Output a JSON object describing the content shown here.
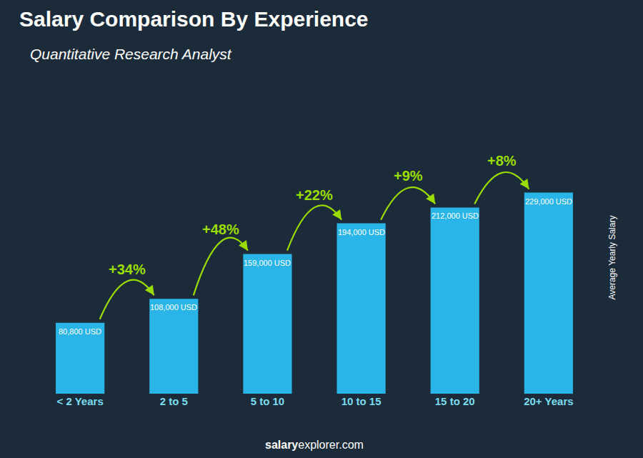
{
  "chart_data": {
    "type": "bar",
    "title": "Salary Comparison By Experience",
    "subtitle": "Quantitative Research Analyst",
    "ylabel": "Average Yearly Salary",
    "footer": [
      "salary",
      "explorer.com"
    ],
    "categories": [
      "< 2 Years",
      "2 to 5",
      "5 to 10",
      "10 to 15",
      "15 to 20",
      "20+ Years"
    ],
    "values": [
      80800,
      108000,
      159000,
      194000,
      212000,
      229000
    ],
    "value_labels": [
      "80,800 USD",
      "108,000 USD",
      "159,000 USD",
      "194,000 USD",
      "212,000 USD",
      "229,000 USD"
    ],
    "data_labels": true,
    "color": "#2ab5e8",
    "ylim": [
      0,
      310000
    ],
    "grid": false,
    "tick_labels": "x",
    "annotations": [
      {
        "text": "+34%",
        "from": "< 2 Years",
        "to": "2 to 5"
      },
      {
        "text": "+48%",
        "from": "2 to 5",
        "to": "5 to 10"
      },
      {
        "text": "+22%",
        "from": "5 to 10",
        "to": "10 to 15"
      },
      {
        "text": "+9%",
        "from": "10 to 15",
        "to": "15 to 20"
      },
      {
        "text": "+8%",
        "from": "15 to 20",
        "to": "20+ Years"
      }
    ]
  }
}
